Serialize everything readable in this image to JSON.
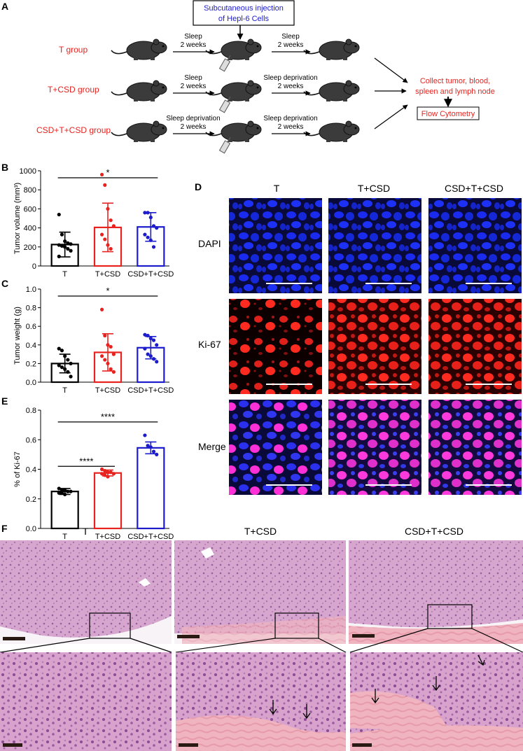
{
  "panel_letters": {
    "a": "A",
    "b": "B",
    "c": "C",
    "d": "D",
    "e": "E",
    "f": "F"
  },
  "schematic": {
    "injection_line1": "Subcutaneous injection",
    "injection_line2": "of Hepl-6 Cells",
    "groups": [
      "T group",
      "T+CSD group",
      "CSD+T+CSD group"
    ],
    "arrows": [
      [
        "Sleep",
        "2 weeks",
        "Sleep",
        "2 weeks"
      ],
      [
        "Sleep",
        "2 weeks",
        "Sleep deprivation",
        "2 weeks"
      ],
      [
        "Sleep deprivation",
        "2 weeks",
        "Sleep deprivation",
        "2 weeks"
      ]
    ],
    "collect_line1": "Collect tumor, blood,",
    "collect_line2": "spleen and lymph node",
    "flow": "Flow Cytometry",
    "colors": {
      "group": "#e8231f",
      "injection": "#1c1ccc",
      "collect": "#e8231f",
      "mouse": "#3b3b3b"
    }
  },
  "chart_data": [
    {
      "id": "B",
      "type": "bar",
      "categories": [
        "T",
        "T+CSD",
        "CSD+T+CSD"
      ],
      "values": [
        225,
        405,
        410
      ],
      "sd": [
        130,
        255,
        150
      ],
      "points": [
        [
          540,
          330,
          260,
          240,
          230,
          220,
          210,
          200,
          180,
          160,
          100
        ],
        [
          960,
          850,
          600,
          480,
          420,
          330,
          280,
          220,
          180
        ],
        [
          560,
          560,
          510,
          420,
          400,
          330,
          300,
          270,
          200
        ]
      ],
      "ylabel": "Tumor volume (mm³)",
      "ylim": [
        0,
        1000
      ],
      "yticks": [
        0,
        200,
        400,
        600,
        800,
        1000
      ],
      "significance": [
        {
          "from": 0,
          "to": 2,
          "label": "*"
        }
      ]
    },
    {
      "id": "C",
      "type": "bar",
      "categories": [
        "T",
        "T+CSD",
        "CSD+T+CSD"
      ],
      "values": [
        0.2,
        0.32,
        0.37
      ],
      "sd": [
        0.1,
        0.2,
        0.12
      ],
      "points": [
        [
          0.36,
          0.34,
          0.28,
          0.24,
          0.2,
          0.18,
          0.16,
          0.14,
          0.11,
          0.06
        ],
        [
          0.78,
          0.5,
          0.4,
          0.38,
          0.3,
          0.28,
          0.24,
          0.2,
          0.14,
          0.11
        ],
        [
          0.51,
          0.5,
          0.47,
          0.45,
          0.4,
          0.36,
          0.3,
          0.28,
          0.25,
          0.22
        ]
      ],
      "ylabel": "Tumor weight (g)",
      "ylim": [
        0,
        1.0
      ],
      "yticks": [
        "0.0",
        "0.2",
        "0.4",
        "0.6",
        "0.8",
        "1.0"
      ],
      "significance": [
        {
          "from": 0,
          "to": 2,
          "label": "*"
        }
      ]
    },
    {
      "id": "E",
      "type": "bar",
      "categories": [
        "T",
        "T+CSD",
        "CSD+T+CSD"
      ],
      "values": [
        0.25,
        0.375,
        0.545
      ],
      "sd": [
        0.02,
        0.02,
        0.04
      ],
      "points": [
        [
          0.27,
          0.26,
          0.26,
          0.25,
          0.25,
          0.24,
          0.24,
          0.23
        ],
        [
          0.4,
          0.39,
          0.38,
          0.38,
          0.37,
          0.37,
          0.36,
          0.35
        ],
        [
          0.63,
          0.56,
          0.55,
          0.52,
          0.5
        ]
      ],
      "ylabel": "% of Ki-67",
      "ylim": [
        0,
        0.8
      ],
      "yticks": [
        "0.0",
        "0.2",
        "0.4",
        "0.6",
        "0.8"
      ],
      "significance": [
        {
          "from": 0,
          "to": 1,
          "label": "****"
        },
        {
          "from": 0,
          "to": 2,
          "label": "****"
        }
      ]
    }
  ],
  "bar_colors": [
    "#000000",
    "#e8231f",
    "#1c1ccc"
  ],
  "micrographs": {
    "columns": [
      "T",
      "T+CSD",
      "CSD+T+CSD"
    ],
    "rows": [
      "DAPI",
      "Ki-67",
      "Merge"
    ]
  },
  "histology": {
    "columns": [
      "T",
      "T+CSD",
      "CSD+T+CSD"
    ]
  }
}
